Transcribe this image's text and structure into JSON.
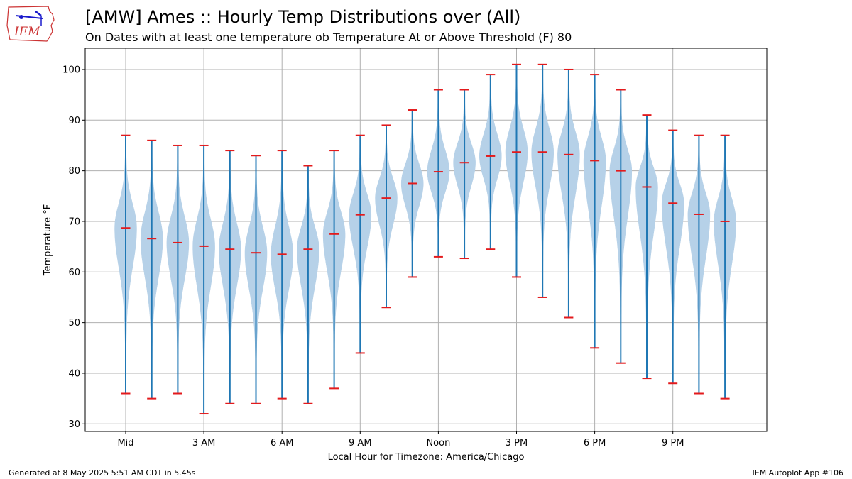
{
  "header": {
    "title": "[AMW] Ames :: Hourly Temp Distributions over (All)",
    "subtitle": "On Dates with at least one temperature ob Temperature At or Above Threshold (F) 80"
  },
  "logo": {
    "text": "IEM",
    "colors": {
      "outline": "#cc3333",
      "accent": "#1a1acc"
    }
  },
  "footer": {
    "generated": "Generated at 8 May 2025 5:51 AM CDT in 5.45s",
    "app": "IEM Autoplot App #106"
  },
  "chart_data": {
    "type": "violin",
    "xlabel": "Local Hour for Timezone: America/Chicago",
    "ylabel": "Temperature °F",
    "ylim": [
      28.5,
      104.2
    ],
    "yticks": [
      30,
      40,
      50,
      60,
      70,
      80,
      90,
      100
    ],
    "xticks": [
      {
        "hour": 0,
        "label": "Mid"
      },
      {
        "hour": 3,
        "label": "3 AM"
      },
      {
        "hour": 6,
        "label": "6 AM"
      },
      {
        "hour": 9,
        "label": "9 AM"
      },
      {
        "hour": 12,
        "label": "Noon"
      },
      {
        "hour": 15,
        "label": "3 PM"
      },
      {
        "hour": 18,
        "label": "6 PM"
      },
      {
        "hour": 21,
        "label": "9 PM"
      }
    ],
    "grid": true,
    "colors": {
      "body": "#b6d1e8",
      "line": "#1f77b4",
      "marker": "#e31a1c"
    },
    "hours": [
      {
        "hour": 0,
        "min": 36,
        "max": 87,
        "median": 68.7
      },
      {
        "hour": 1,
        "min": 35,
        "max": 86,
        "median": 66.6
      },
      {
        "hour": 2,
        "min": 36,
        "max": 85,
        "median": 65.8
      },
      {
        "hour": 3,
        "min": 32,
        "max": 85,
        "median": 65.1
      },
      {
        "hour": 4,
        "min": 34,
        "max": 84,
        "median": 64.5
      },
      {
        "hour": 5,
        "min": 34,
        "max": 83,
        "median": 63.8
      },
      {
        "hour": 6,
        "min": 35,
        "max": 84,
        "median": 63.5
      },
      {
        "hour": 7,
        "min": 34,
        "max": 81,
        "median": 64.5
      },
      {
        "hour": 8,
        "min": 37,
        "max": 84,
        "median": 67.5
      },
      {
        "hour": 9,
        "min": 44,
        "max": 87,
        "median": 71.3
      },
      {
        "hour": 10,
        "min": 53,
        "max": 89,
        "median": 74.6
      },
      {
        "hour": 11,
        "min": 59,
        "max": 92,
        "median": 77.5
      },
      {
        "hour": 12,
        "min": 63,
        "max": 96,
        "median": 79.8
      },
      {
        "hour": 13,
        "min": 62.7,
        "max": 96,
        "median": 81.6
      },
      {
        "hour": 14,
        "min": 64.5,
        "max": 99,
        "median": 82.9
      },
      {
        "hour": 15,
        "min": 59,
        "max": 101,
        "median": 83.7
      },
      {
        "hour": 16,
        "min": 55,
        "max": 101,
        "median": 83.7
      },
      {
        "hour": 17,
        "min": 51,
        "max": 100,
        "median": 83.2
      },
      {
        "hour": 18,
        "min": 45,
        "max": 99,
        "median": 82.0
      },
      {
        "hour": 19,
        "min": 42,
        "max": 96,
        "median": 80.0
      },
      {
        "hour": 20,
        "min": 39,
        "max": 91,
        "median": 76.8
      },
      {
        "hour": 21,
        "min": 38,
        "max": 88,
        "median": 73.6
      },
      {
        "hour": 22,
        "min": 36,
        "max": 87,
        "median": 71.4
      },
      {
        "hour": 23,
        "min": 35,
        "max": 87,
        "median": 70.0
      }
    ]
  }
}
